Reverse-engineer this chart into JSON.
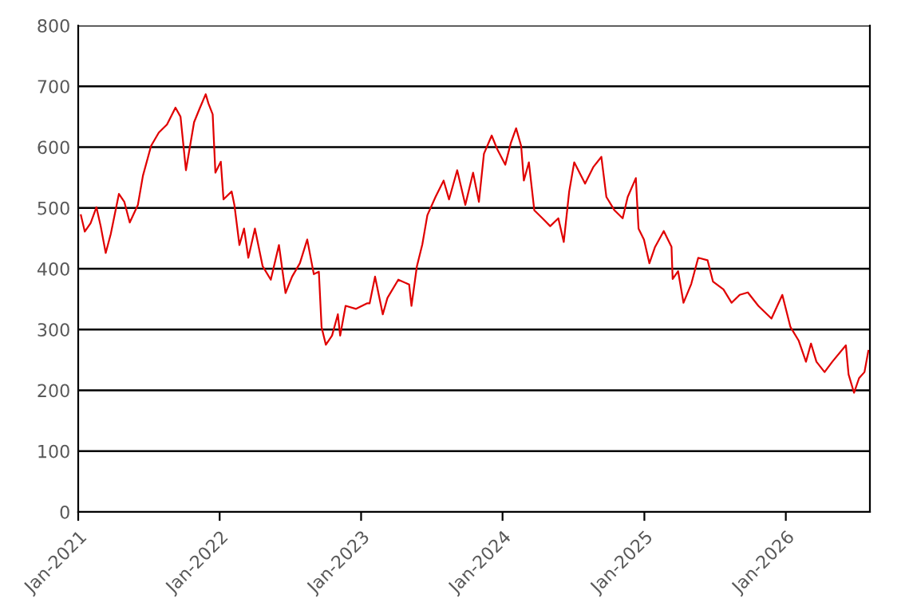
{
  "chart_data": {
    "type": "line",
    "x": [
      "2021-01-08",
      "2021-01-18",
      "2021-02-02",
      "2021-02-17",
      "2021-02-28",
      "2021-03-13",
      "2021-03-26",
      "2021-04-16",
      "2021-04-30",
      "2021-05-14",
      "2021-06-04",
      "2021-06-17",
      "2021-07-08",
      "2021-07-28",
      "2021-08-18",
      "2021-09-09",
      "2021-09-22",
      "2021-10-06",
      "2021-10-27",
      "2021-11-10",
      "2021-11-26",
      "2021-12-03",
      "2021-12-14",
      "2021-12-21",
      "2022-01-04",
      "2022-01-11",
      "2022-02-01",
      "2022-02-08",
      "2022-02-21",
      "2022-03-05",
      "2022-03-16",
      "2022-04-02",
      "2022-04-22",
      "2022-05-13",
      "2022-06-03",
      "2022-06-20",
      "2022-07-07",
      "2022-07-27",
      "2022-08-15",
      "2022-09-01",
      "2022-09-14",
      "2022-09-21",
      "2022-10-02",
      "2022-10-18",
      "2022-11-02",
      "2022-11-08",
      "2022-11-22",
      "2022-12-19",
      "2023-01-16",
      "2023-01-23",
      "2023-02-06",
      "2023-02-26",
      "2023-03-10",
      "2023-04-07",
      "2023-05-05",
      "2023-05-11",
      "2023-05-25",
      "2023-06-08",
      "2023-06-21",
      "2023-07-12",
      "2023-08-02",
      "2023-08-16",
      "2023-09-06",
      "2023-09-27",
      "2023-10-17",
      "2023-11-01",
      "2023-11-14",
      "2023-12-04",
      "2023-12-18",
      "2024-01-08",
      "2024-01-22",
      "2024-02-05",
      "2024-02-18",
      "2024-02-25",
      "2024-03-09",
      "2024-03-23",
      "2024-04-13",
      "2024-05-03",
      "2024-05-24",
      "2024-06-07",
      "2024-06-21",
      "2024-07-04",
      "2024-08-01",
      "2024-08-22",
      "2024-09-12",
      "2024-09-25",
      "2024-10-16",
      "2024-11-06",
      "2024-11-19",
      "2024-12-10",
      "2024-12-17",
      "2024-12-31",
      "2025-01-14",
      "2025-01-28",
      "2025-02-20",
      "2025-03-12",
      "2025-03-15",
      "2025-03-29",
      "2025-04-12",
      "2025-05-02",
      "2025-05-20",
      "2025-06-13",
      "2025-06-27",
      "2025-07-24",
      "2025-08-14",
      "2025-09-04",
      "2025-09-25",
      "2025-10-22",
      "2025-11-25",
      "2025-12-23",
      "2026-01-13",
      "2026-02-03",
      "2026-02-22",
      "2026-03-07",
      "2026-03-21",
      "2026-04-11",
      "2026-05-01",
      "2026-06-05",
      "2026-06-12",
      "2026-06-26",
      "2026-07-09",
      "2026-07-23",
      "2026-08-02"
    ],
    "series": [
      {
        "color": "#e00000",
        "values": [
          488,
          461,
          475,
          501,
          470,
          426,
          457,
          523,
          510,
          476,
          505,
          553,
          602,
          624,
          637,
          665,
          650,
          562,
          641,
          663,
          687,
          672,
          654,
          558,
          576,
          514,
          527,
          505,
          439,
          466,
          418,
          466,
          404,
          382,
          439,
          360,
          387,
          409,
          448,
          391,
          395,
          304,
          275,
          290,
          325,
          290,
          339,
          334,
          343,
          343,
          387,
          325,
          352,
          382,
          374,
          339,
          404,
          440,
          488,
          518,
          545,
          514,
          562,
          505,
          558,
          510,
          589,
          619,
          597,
          571,
          606,
          631,
          602,
          545,
          575,
          496,
          483,
          470,
          483,
          444,
          527,
          575,
          540,
          567,
          584,
          518,
          496,
          483,
          518,
          549,
          466,
          448,
          409,
          435,
          462,
          436,
          383,
          396,
          344,
          375,
          418,
          414,
          379,
          366,
          344,
          357,
          361,
          339,
          318,
          357,
          304,
          282,
          247,
          277,
          247,
          230,
          247,
          274,
          226,
          196,
          220,
          230,
          265
        ]
      }
    ],
    "xlim": [
      "2021-01-01",
      "2026-08-06"
    ],
    "xticks": [
      {
        "value": "2021-01-01",
        "label": "Jan-2021"
      },
      {
        "value": "2022-01-01",
        "label": "Jan-2022"
      },
      {
        "value": "2023-01-01",
        "label": "Jan-2023"
      },
      {
        "value": "2024-01-01",
        "label": "Jan-2024"
      },
      {
        "value": "2025-01-01",
        "label": "Jan-2025"
      },
      {
        "value": "2026-01-01",
        "label": "Jan-2026"
      }
    ],
    "ylim": [
      0,
      800
    ],
    "yticks": [
      0,
      100,
      200,
      300,
      400,
      500,
      600,
      700,
      800
    ],
    "grid": "y",
    "line_style": "solid",
    "marker": "none"
  }
}
